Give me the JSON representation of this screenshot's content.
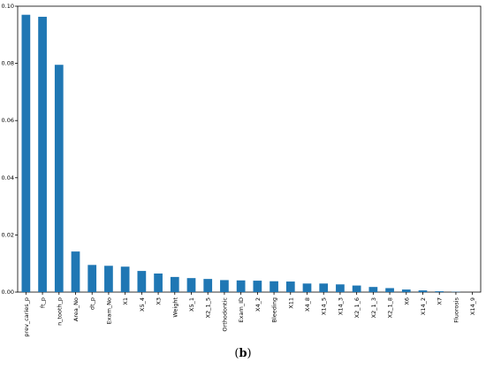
{
  "chart_data": {
    "type": "bar",
    "categories": [
      "prev_caries_p",
      "ft_p",
      "n_tooth_p",
      "Area_No",
      "dt_p",
      "Exam_No",
      "X1",
      "X5_4",
      "X3",
      "Weight",
      "X5_1",
      "X2_1_5",
      "Orthodontic",
      "Exam_ID",
      "X4_2",
      "Bleeding",
      "X11",
      "X4_8",
      "X14_5",
      "X14_3",
      "X2_1_6",
      "X2_1_3",
      "X2_1_8",
      "X6",
      "X14_2",
      "X7",
      "Fluorosis",
      "X14_9"
    ],
    "values": [
      0.097,
      0.0963,
      0.0795,
      0.0142,
      0.0095,
      0.0092,
      0.0089,
      0.0074,
      0.0065,
      0.0053,
      0.0049,
      0.0046,
      0.0042,
      0.0041,
      0.004,
      0.0038,
      0.0037,
      0.003,
      0.003,
      0.0027,
      0.0023,
      0.0018,
      0.0014,
      0.0009,
      0.0006,
      0.0003,
      0.0001,
      0.0
    ],
    "yticks": [
      "0.00",
      "0.02",
      "0.04",
      "0.06",
      "0.08",
      "0.10"
    ],
    "ylim": [
      0,
      0.1
    ],
    "bar_color": "#1f77b4",
    "grid": false
  },
  "caption": {
    "open": "(",
    "letter": "b",
    "close": ")"
  }
}
